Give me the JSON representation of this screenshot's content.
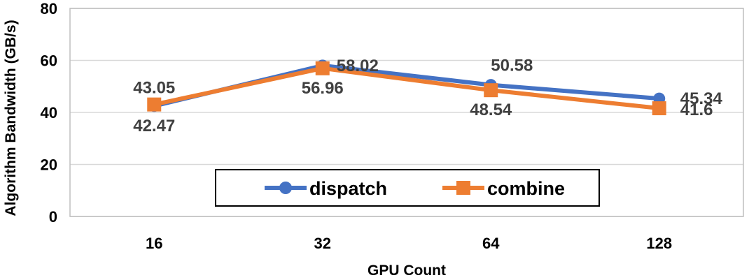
{
  "chart_data": {
    "type": "line",
    "categories": [
      "16",
      "32",
      "64",
      "128"
    ],
    "series": [
      {
        "name": "dispatch",
        "values": [
          42.47,
          58.02,
          50.58,
          45.34
        ],
        "labels": [
          "42.47",
          "58.02",
          "50.58",
          "45.34"
        ],
        "color": "#4472C4",
        "marker": "circle"
      },
      {
        "name": "combine",
        "values": [
          43.05,
          56.96,
          48.54,
          41.6
        ],
        "labels": [
          "43.05",
          "56.96",
          "48.54",
          "41.6"
        ],
        "color": "#ED7D31",
        "marker": "square"
      }
    ],
    "xlabel": "GPU Count",
    "ylabel": "Algorithm Bandwidth (GB/s)",
    "ylim": [
      0,
      80
    ],
    "yticks": [
      "0",
      "20",
      "40",
      "60",
      "80"
    ],
    "grid": true,
    "legend": "bottom-center"
  }
}
